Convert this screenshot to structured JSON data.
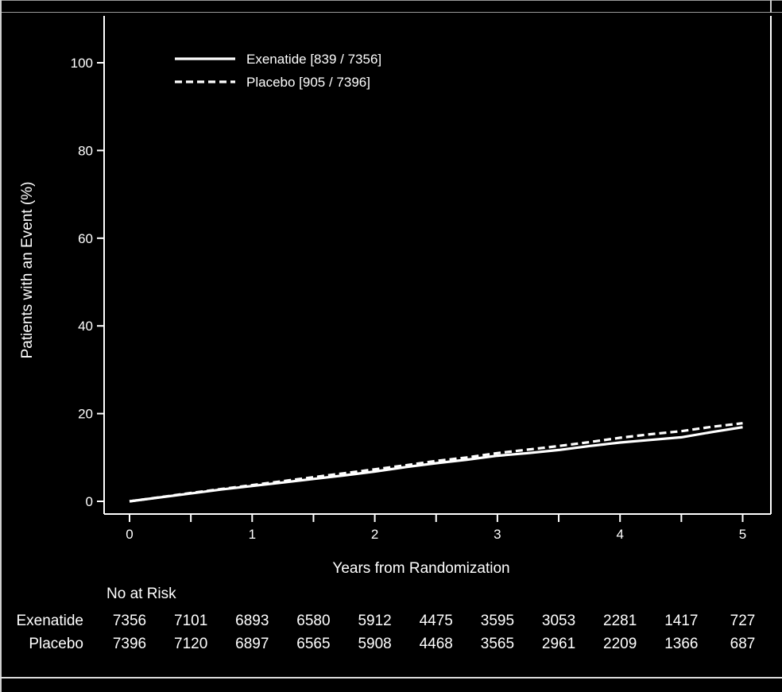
{
  "chart_data": {
    "type": "line",
    "title": "",
    "xlabel": "Years from Randomization",
    "ylabel": "Patients with an Event (%)",
    "xlim": [
      -0.2,
      5.05
    ],
    "ylim": [
      0,
      100
    ],
    "x_ticks": [
      0,
      1,
      2,
      3,
      4,
      5
    ],
    "x_minor_ticks": [
      0.5,
      1.5,
      2.5,
      3.5,
      4.5
    ],
    "y_ticks": [
      0,
      20,
      40,
      60,
      80,
      100
    ],
    "grid": false,
    "legend_position": "top-left",
    "series": [
      {
        "name": "Exenatide [839 / 7356]",
        "style": "solid",
        "color": "#ffffff",
        "x": [
          0,
          0.25,
          0.5,
          0.75,
          1,
          1.25,
          1.5,
          1.75,
          2,
          2.25,
          2.5,
          2.75,
          3,
          3.25,
          3.5,
          3.75,
          4,
          4.25,
          4.5,
          4.75,
          5
        ],
        "y": [
          0,
          0.9,
          1.8,
          2.7,
          3.5,
          4.3,
          5.1,
          5.9,
          6.8,
          7.8,
          8.7,
          9.5,
          10.4,
          11.0,
          11.7,
          12.6,
          13.4,
          14.0,
          14.6,
          15.8,
          16.9
        ]
      },
      {
        "name": "Placebo [905 / 7396]",
        "style": "dashed",
        "color": "#ffffff",
        "x": [
          0,
          0.25,
          0.5,
          0.75,
          1,
          1.25,
          1.5,
          1.75,
          2,
          2.25,
          2.5,
          2.75,
          3,
          3.25,
          3.5,
          3.75,
          4,
          4.25,
          4.5,
          4.75,
          5
        ],
        "y": [
          0,
          0.95,
          1.9,
          2.8,
          3.7,
          4.6,
          5.5,
          6.4,
          7.3,
          8.2,
          9.2,
          10.0,
          11.0,
          11.8,
          12.6,
          13.5,
          14.5,
          15.3,
          16.0,
          17.0,
          17.8
        ]
      }
    ],
    "at_risk": {
      "header": "No at Risk",
      "times": [
        0,
        0.5,
        1,
        1.5,
        2,
        2.5,
        3,
        3.5,
        4,
        4.5,
        5
      ],
      "rows": [
        {
          "label": "Exenatide",
          "values": [
            "7356",
            "7101",
            "6893",
            "6580",
            "5912",
            "4475",
            "3595",
            "3053",
            "2281",
            "1417",
            "727"
          ]
        },
        {
          "label": "Placebo",
          "values": [
            "7396",
            "7120",
            "6897",
            "6565",
            "5908",
            "4468",
            "3565",
            "2961",
            "2209",
            "1366",
            "687"
          ]
        }
      ]
    }
  }
}
